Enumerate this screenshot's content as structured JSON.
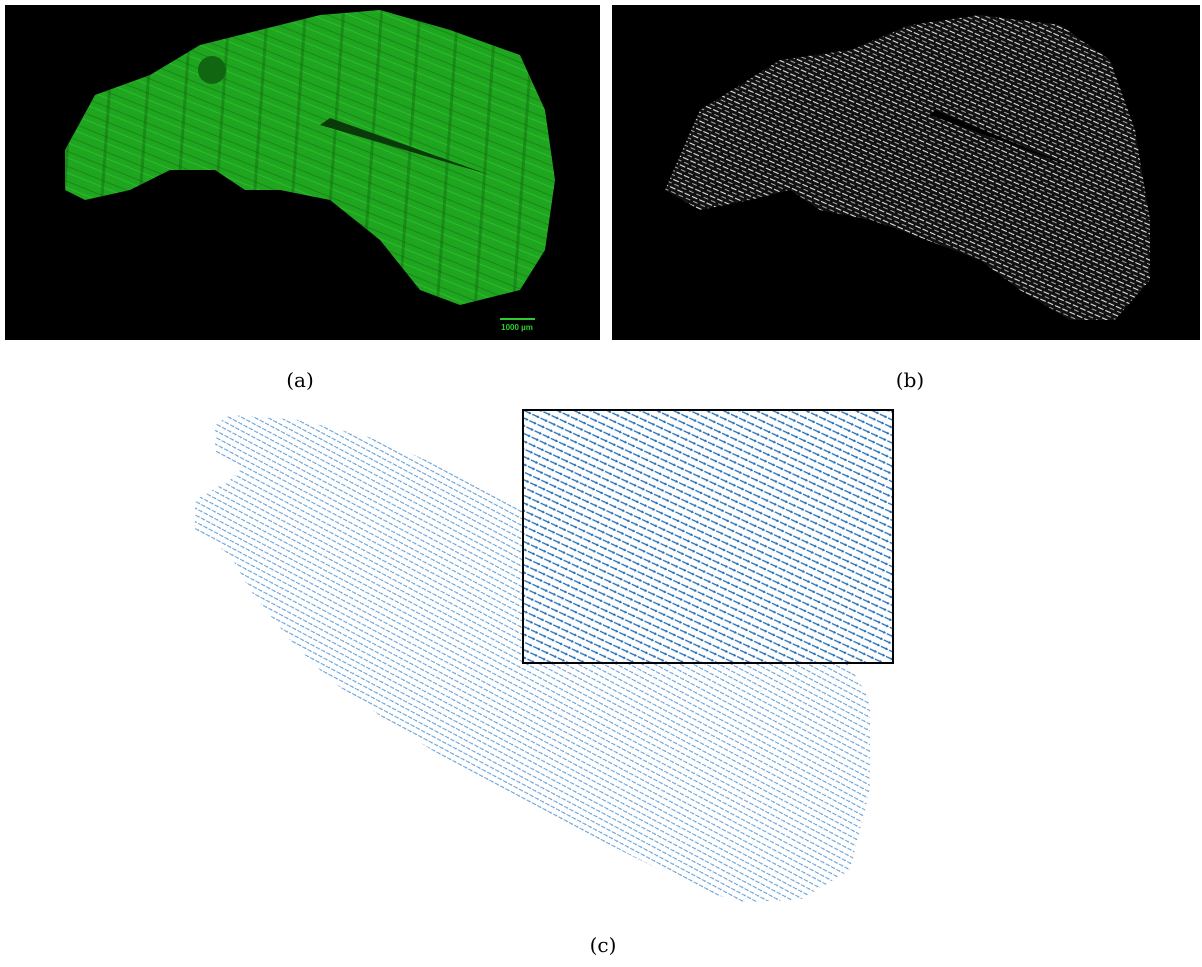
{
  "panels": [
    {
      "label": "(a)",
      "scale_bar": "1000 µm"
    },
    {
      "label": "(b)"
    },
    {
      "label": "(c)"
    }
  ]
}
